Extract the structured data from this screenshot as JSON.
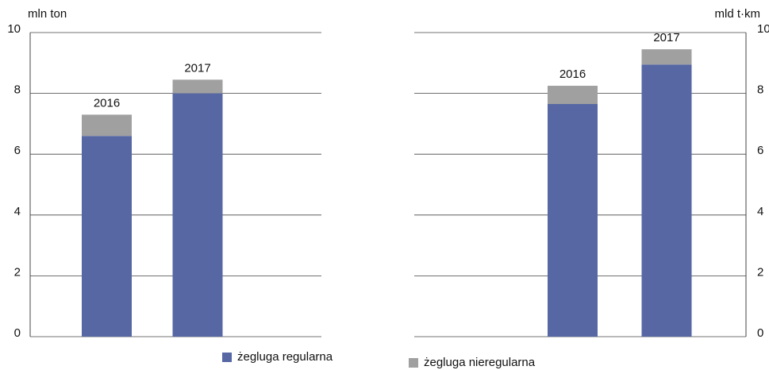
{
  "chart_data": [
    {
      "type": "bar",
      "stacked": true,
      "y_label": "mln ton",
      "axis_side": "left",
      "categories": [
        "2016",
        "2017"
      ],
      "ylim": [
        0,
        10
      ],
      "yticks": [
        0,
        2,
        4,
        6,
        8,
        10
      ],
      "grid": true,
      "series": [
        {
          "name": "żegluga regularna",
          "color": "#5667a4",
          "values": [
            6.6,
            8.0
          ]
        },
        {
          "name": "żegluga nieregularna",
          "color": "#a0a0a0",
          "values": [
            0.7,
            0.45
          ]
        }
      ]
    },
    {
      "type": "bar",
      "stacked": true,
      "y_label": "mld t·km",
      "axis_side": "right",
      "categories": [
        "2016",
        "2017"
      ],
      "ylim": [
        0,
        10
      ],
      "yticks": [
        0,
        2,
        4,
        6,
        8,
        10
      ],
      "grid": true,
      "series": [
        {
          "color": "#5667a4",
          "values": [
            7.65,
            8.95
          ]
        },
        {
          "color": "#a0a0a0",
          "values": [
            0.6,
            0.5
          ]
        }
      ]
    }
  ]
}
